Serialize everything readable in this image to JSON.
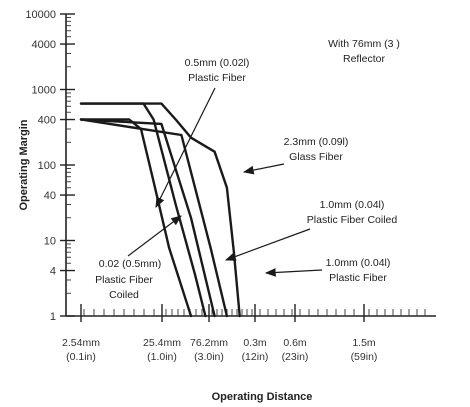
{
  "chart_data": {
    "type": "line",
    "ylabel": "Operating Margin",
    "xlabel": "Operating Distance",
    "y_scale": "log",
    "x_scale": "log",
    "ylim": [
      1,
      10000
    ],
    "xlim": [
      0.0254,
      3.5
    ],
    "grid": false,
    "y_ticks": [
      {
        "value": 1,
        "label": "1"
      },
      {
        "value": 4,
        "label": "4"
      },
      {
        "value": 10,
        "label": "10"
      },
      {
        "value": 40,
        "label": "40"
      },
      {
        "value": 100,
        "label": "100"
      },
      {
        "value": 400,
        "label": "400"
      },
      {
        "value": 1000,
        "label": "1000"
      },
      {
        "value": 4000,
        "label": "4000"
      },
      {
        "value": 10000,
        "label": "10000"
      }
    ],
    "x_ticks": [
      {
        "value": 0.0254,
        "label1": "2.54mm",
        "label2": "(0.1in)"
      },
      {
        "value": 0.254,
        "label1": "25.4mm",
        "label2": "(1.0in)"
      },
      {
        "value": 0.762,
        "label1": "76.2mm",
        "label2": "(3.0in)"
      },
      {
        "value": 3,
        "label1": "0.3m",
        "label2": "(12in)"
      },
      {
        "value": 6,
        "label1": "0.6m",
        "label2": "(23in)"
      },
      {
        "value": 15,
        "label1": "1.5m",
        "label2": "(59in)"
      }
    ],
    "series": [
      {
        "name": "0.02 (0.5mm) Plastic Fiber Coiled",
        "points": [
          [
            0.0254,
            400
          ],
          [
            0.1,
            400
          ],
          [
            0.14,
            300
          ],
          [
            0.2,
            60
          ],
          [
            0.3,
            8
          ],
          [
            0.5,
            1
          ]
        ]
      },
      {
        "name": "0.5mm (0.02l) Plastic Fiber",
        "points": [
          [
            0.0254,
            650
          ],
          [
            0.15,
            650
          ],
          [
            0.2,
            400
          ],
          [
            0.35,
            30
          ],
          [
            0.55,
            3.5
          ],
          [
            0.7,
            1
          ]
        ]
      },
      {
        "name": "1.0mm (0.04l) Plastic Fiber Coiled",
        "points": [
          [
            0.0254,
            400
          ],
          [
            0.25,
            350
          ],
          [
            0.5,
            20
          ],
          [
            0.9,
            1
          ]
        ]
      },
      {
        "name": "1.0mm (0.04l) Plastic Fiber",
        "points": [
          [
            0.0254,
            400
          ],
          [
            0.4,
            250
          ],
          [
            0.8,
            8
          ],
          [
            1.3,
            1
          ]
        ]
      },
      {
        "name": "2.3mm (0.09l) Glass Fiber",
        "points": [
          [
            0.0254,
            650
          ],
          [
            0.25,
            650
          ],
          [
            0.35,
            400
          ],
          [
            0.5,
            230
          ],
          [
            0.9,
            150
          ],
          [
            1.3,
            50
          ],
          [
            1.6,
            7
          ],
          [
            1.9,
            1
          ]
        ]
      }
    ],
    "annotations": [
      {
        "lines": [
          "With 76mm (3  )",
          "Reflector"
        ]
      },
      {
        "lines": [
          "0.5mm (0.02l)",
          "Plastic Fiber"
        ]
      },
      {
        "lines": [
          "2.3mm (0.09l)",
          "Glass Fiber"
        ]
      },
      {
        "lines": [
          "1.0mm (0.04l)",
          "Plastic Fiber Coiled"
        ]
      },
      {
        "lines": [
          "1.0mm (0.04l)",
          "Plastic Fiber"
        ]
      },
      {
        "lines": [
          "0.02 (0.5mm)",
          "Plastic Fiber",
          "Coiled"
        ]
      }
    ]
  }
}
